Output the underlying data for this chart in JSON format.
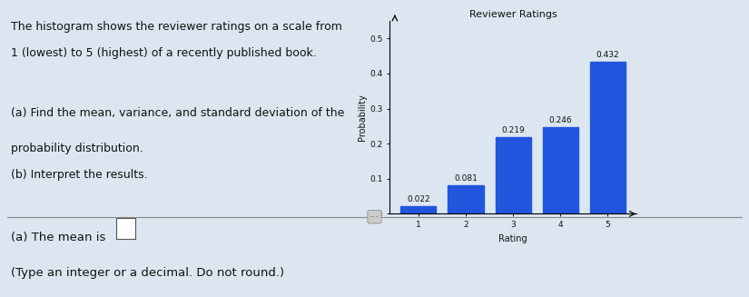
{
  "title": "Reviewer Ratings",
  "xlabel": "Rating",
  "ylabel": "Probability",
  "ratings": [
    1,
    2,
    3,
    4,
    5
  ],
  "probabilities": [
    0.022,
    0.081,
    0.219,
    0.246,
    0.432
  ],
  "bar_color": "#2255DD",
  "ylim": [
    0,
    0.55
  ],
  "yticks": [
    0.0,
    0.1,
    0.2,
    0.3,
    0.4,
    0.5
  ],
  "ytick_labels": [
    "0.0",
    "0.1",
    "0.2",
    "0.3",
    "0.4",
    "0.5"
  ],
  "bar_width": 0.75,
  "title_fontsize": 8,
  "axis_label_fontsize": 7,
  "tick_fontsize": 6.5,
  "annotation_fontsize": 6.5,
  "bg_color": "#dce6f0",
  "text_color": "#111111",
  "left_text_line1": "The histogram shows the reviewer ratings on a scale from",
  "left_text_line2": "1 (lowest) to 5 (highest) of a recently published book.",
  "left_text_line3": "",
  "left_text_line4": "(a) Find the mean, variance, and standard deviation of the",
  "left_text_line5": "probability distribution.",
  "left_text_line6": "(b) Interpret the results.",
  "divider_text": "...",
  "bottom_line1": "(a) The mean is",
  "bottom_line2": "(Type an integer or a decimal. Do not round.)"
}
